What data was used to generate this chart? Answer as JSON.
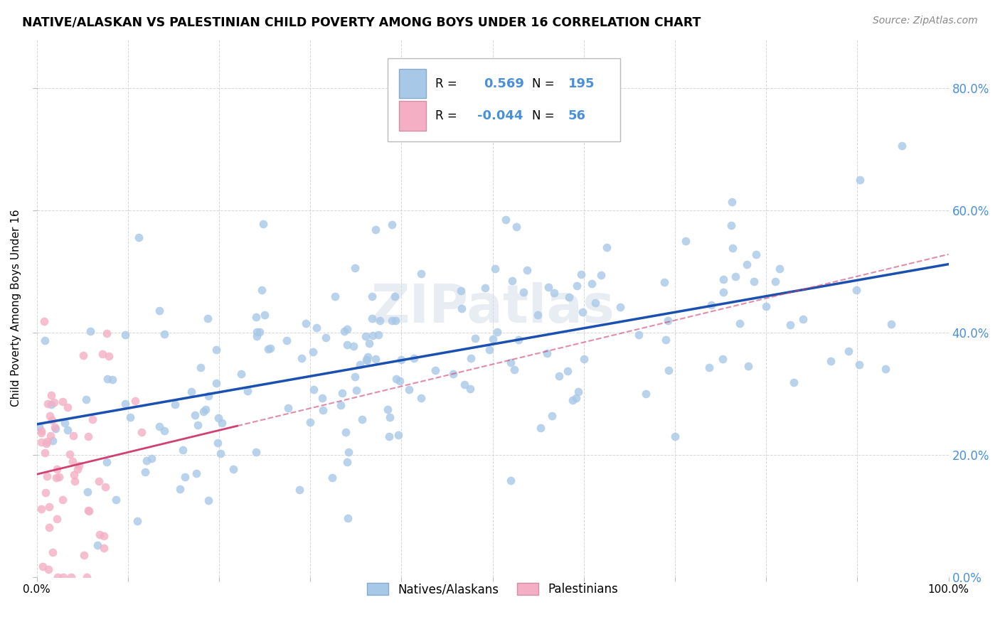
{
  "title": "NATIVE/ALASKAN VS PALESTINIAN CHILD POVERTY AMONG BOYS UNDER 16 CORRELATION CHART",
  "source": "Source: ZipAtlas.com",
  "ylabel": "Child Poverty Among Boys Under 16",
  "natives_R": 0.569,
  "natives_N": 195,
  "palestinians_R": -0.044,
  "palestinians_N": 56,
  "native_color": "#a8c8e8",
  "native_line_color": "#1a50b0",
  "palestinian_color": "#f4afc4",
  "palestinian_line_color": "#d04070",
  "watermark": "ZIPatlas",
  "xlim": [
    0.0,
    1.0
  ],
  "ylim": [
    0.0,
    0.88
  ],
  "background_color": "#ffffff",
  "grid_color": "#cccccc",
  "right_tick_color": "#4a90d9",
  "seed": 77
}
